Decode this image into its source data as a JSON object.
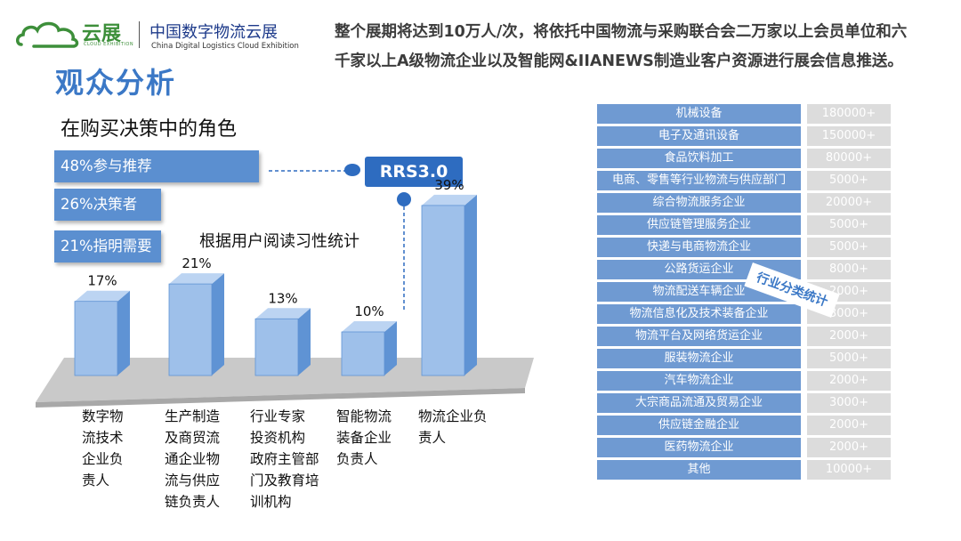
{
  "logo": {
    "word": "云展",
    "sub": "CLOUD EXHIBITION",
    "cn": "中国数字物流云展",
    "en": "China Digital Logistics Cloud Exhibition"
  },
  "header": {
    "line1": "整个展期将达到10万人/次，将依托中国物流与采购联合会二万家以上会员单位和六",
    "line2": "千家以上A级物流企业以及智能网&IIANEWS制造业客户资源进行展会信息推送。"
  },
  "page_title": "观众分析",
  "role_heading": "在购买决策中的角色",
  "roles": [
    "48%参与推荐",
    "26%决策者",
    "21%指明需要"
  ],
  "rrs_label": "RRS3.0",
  "stat_title": "根据用户阅读习性统计",
  "industry_stamp": "行业分类统计",
  "colors": {
    "accent": "#3b78c6",
    "bar_front": "#9ec0ea",
    "bar_side": "#5f93d4",
    "table_left": "#6f9ad2",
    "table_right": "#dcdcdc",
    "role_box": "#5b8fd0"
  },
  "chart_data": [
    {
      "type": "bar",
      "categories": [
        [
          "数字物",
          "流技术",
          "企业负",
          "责人"
        ],
        [
          "生产制造",
          "及商贸流",
          "通企业物",
          "流与供应",
          "链负责人"
        ],
        [
          "行业专家",
          "投资机构",
          "政府主管部",
          "门及教育培",
          "训机构"
        ],
        [
          "智能物流",
          "装备企业",
          "负责人"
        ],
        [
          "物流企业负",
          "责人"
        ]
      ],
      "values": [
        17,
        21,
        13,
        10,
        39
      ],
      "data_labels": [
        "17%",
        "21%",
        "13%",
        "10%",
        "39%"
      ],
      "ylim": [
        0,
        45
      ]
    },
    {
      "type": "table",
      "rows": [
        {
          "label": "机械设备",
          "value": "180000+"
        },
        {
          "label": "电子及通讯设备",
          "value": "150000+"
        },
        {
          "label": "食品饮料加工",
          "value": "80000+"
        },
        {
          "label": "电商、零售等行业物流与供应部门",
          "value": "5000+"
        },
        {
          "label": "综合物流服务企业",
          "value": "20000+"
        },
        {
          "label": "供应链管理服务企业",
          "value": "5000+"
        },
        {
          "label": "快递与电商物流企业",
          "value": "5000+"
        },
        {
          "label": "公路货运企业",
          "value": "8000+"
        },
        {
          "label": "物流配送车辆企业",
          "value": "2000+"
        },
        {
          "label": "物流信息化及技术装备企业",
          "value": "3000+"
        },
        {
          "label": "物流平台及网络货运企业",
          "value": "2000+"
        },
        {
          "label": "服装物流企业",
          "value": "5000+"
        },
        {
          "label": "汽车物流企业",
          "value": "2000+"
        },
        {
          "label": "大宗商品流通及贸易企业",
          "value": "3000+"
        },
        {
          "label": "供应链金融企业",
          "value": "2000+"
        },
        {
          "label": "医药物流企业",
          "value": "2000+"
        },
        {
          "label": "其他",
          "value": "10000+"
        }
      ]
    }
  ]
}
